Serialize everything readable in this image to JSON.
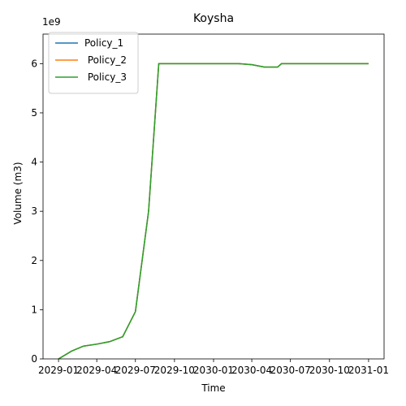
{
  "chart_data": {
    "type": "line",
    "title": "Koysha",
    "xlabel": "Time",
    "ylabel": "Volume (m3)",
    "y_multiplier_label": "1e9",
    "xlim": [
      "2029-01-01",
      "2031-01-01"
    ],
    "ylim": [
      0,
      6.6
    ],
    "y_scale": 1000000000,
    "x_ticks": [
      "2029-01",
      "2029-04",
      "2029-07",
      "2029-10",
      "2030-01",
      "2030-04",
      "2030-07",
      "2030-10",
      "2031-01"
    ],
    "y_ticks": [
      0,
      1,
      2,
      3,
      4,
      5,
      6
    ],
    "legend_position": "top-left",
    "grid": false,
    "series": [
      {
        "name": "Policy_1",
        "color": "#1f77b4",
        "points": [
          [
            "2029-01-01",
            0
          ],
          [
            "2029-02-01",
            0.16
          ],
          [
            "2029-03-01",
            0.26
          ],
          [
            "2029-04-01",
            0.3
          ],
          [
            "2029-05-01",
            0.35
          ],
          [
            "2029-06-01",
            0.45
          ],
          [
            "2029-07-01",
            0.96
          ],
          [
            "2029-08-01",
            3.0
          ],
          [
            "2029-08-25",
            6.0
          ],
          [
            "2029-10-01",
            6.0
          ],
          [
            "2030-01-01",
            6.0
          ],
          [
            "2030-03-01",
            6.0
          ],
          [
            "2030-04-01",
            5.98
          ],
          [
            "2030-05-01",
            5.93
          ],
          [
            "2030-06-01",
            5.93
          ],
          [
            "2030-06-10",
            6.0
          ],
          [
            "2030-10-01",
            6.0
          ],
          [
            "2031-01-01",
            6.0
          ]
        ]
      },
      {
        "name": " Policy_2",
        "color": "#ff7f0e",
        "points": [
          [
            "2029-01-01",
            0
          ],
          [
            "2029-02-01",
            0.16
          ],
          [
            "2029-03-01",
            0.26
          ],
          [
            "2029-04-01",
            0.3
          ],
          [
            "2029-05-01",
            0.35
          ],
          [
            "2029-06-01",
            0.45
          ],
          [
            "2029-07-01",
            0.96
          ],
          [
            "2029-08-01",
            3.0
          ],
          [
            "2029-08-25",
            6.0
          ],
          [
            "2029-10-01",
            6.0
          ],
          [
            "2030-01-01",
            6.0
          ],
          [
            "2030-03-01",
            6.0
          ],
          [
            "2030-04-01",
            5.98
          ],
          [
            "2030-05-01",
            5.93
          ],
          [
            "2030-06-01",
            5.93
          ],
          [
            "2030-06-10",
            6.0
          ],
          [
            "2030-10-01",
            6.0
          ],
          [
            "2031-01-01",
            6.0
          ]
        ]
      },
      {
        "name": " Policy_3",
        "color": "#2ca02c",
        "points": [
          [
            "2029-01-01",
            0
          ],
          [
            "2029-02-01",
            0.16
          ],
          [
            "2029-03-01",
            0.26
          ],
          [
            "2029-04-01",
            0.3
          ],
          [
            "2029-05-01",
            0.35
          ],
          [
            "2029-06-01",
            0.45
          ],
          [
            "2029-07-01",
            0.96
          ],
          [
            "2029-08-01",
            3.0
          ],
          [
            "2029-08-25",
            6.0
          ],
          [
            "2029-10-01",
            6.0
          ],
          [
            "2030-01-01",
            6.0
          ],
          [
            "2030-03-01",
            6.0
          ],
          [
            "2030-04-01",
            5.98
          ],
          [
            "2030-05-01",
            5.93
          ],
          [
            "2030-06-01",
            5.93
          ],
          [
            "2030-06-10",
            6.0
          ],
          [
            "2030-10-01",
            6.0
          ],
          [
            "2031-01-01",
            6.0
          ]
        ]
      }
    ]
  }
}
